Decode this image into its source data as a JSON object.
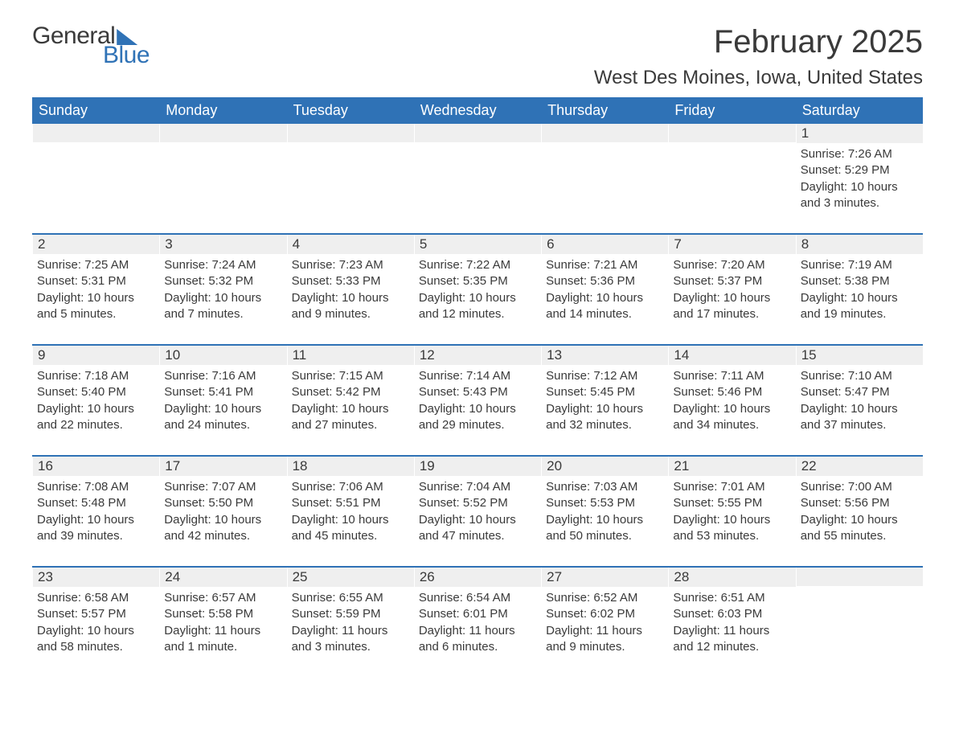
{
  "logo": {
    "text1": "General",
    "text2": "Blue"
  },
  "title": "February 2025",
  "location": "West Des Moines, Iowa, United States",
  "colors": {
    "header_bg": "#2f72b6",
    "header_text": "#ffffff",
    "daynum_bg": "#efefef",
    "border": "#2f72b6",
    "text": "#3a3a3a",
    "page_bg": "#ffffff"
  },
  "fonts": {
    "title_size": 40,
    "location_size": 24,
    "weekday_size": 18,
    "body_size": 15
  },
  "weekdays": [
    "Sunday",
    "Monday",
    "Tuesday",
    "Wednesday",
    "Thursday",
    "Friday",
    "Saturday"
  ],
  "weeks": [
    [
      {
        "n": "",
        "sunrise": "",
        "sunset": "",
        "daylight": ""
      },
      {
        "n": "",
        "sunrise": "",
        "sunset": "",
        "daylight": ""
      },
      {
        "n": "",
        "sunrise": "",
        "sunset": "",
        "daylight": ""
      },
      {
        "n": "",
        "sunrise": "",
        "sunset": "",
        "daylight": ""
      },
      {
        "n": "",
        "sunrise": "",
        "sunset": "",
        "daylight": ""
      },
      {
        "n": "",
        "sunrise": "",
        "sunset": "",
        "daylight": ""
      },
      {
        "n": "1",
        "sunrise": "Sunrise: 7:26 AM",
        "sunset": "Sunset: 5:29 PM",
        "daylight": "Daylight: 10 hours and 3 minutes."
      }
    ],
    [
      {
        "n": "2",
        "sunrise": "Sunrise: 7:25 AM",
        "sunset": "Sunset: 5:31 PM",
        "daylight": "Daylight: 10 hours and 5 minutes."
      },
      {
        "n": "3",
        "sunrise": "Sunrise: 7:24 AM",
        "sunset": "Sunset: 5:32 PM",
        "daylight": "Daylight: 10 hours and 7 minutes."
      },
      {
        "n": "4",
        "sunrise": "Sunrise: 7:23 AM",
        "sunset": "Sunset: 5:33 PM",
        "daylight": "Daylight: 10 hours and 9 minutes."
      },
      {
        "n": "5",
        "sunrise": "Sunrise: 7:22 AM",
        "sunset": "Sunset: 5:35 PM",
        "daylight": "Daylight: 10 hours and 12 minutes."
      },
      {
        "n": "6",
        "sunrise": "Sunrise: 7:21 AM",
        "sunset": "Sunset: 5:36 PM",
        "daylight": "Daylight: 10 hours and 14 minutes."
      },
      {
        "n": "7",
        "sunrise": "Sunrise: 7:20 AM",
        "sunset": "Sunset: 5:37 PM",
        "daylight": "Daylight: 10 hours and 17 minutes."
      },
      {
        "n": "8",
        "sunrise": "Sunrise: 7:19 AM",
        "sunset": "Sunset: 5:38 PM",
        "daylight": "Daylight: 10 hours and 19 minutes."
      }
    ],
    [
      {
        "n": "9",
        "sunrise": "Sunrise: 7:18 AM",
        "sunset": "Sunset: 5:40 PM",
        "daylight": "Daylight: 10 hours and 22 minutes."
      },
      {
        "n": "10",
        "sunrise": "Sunrise: 7:16 AM",
        "sunset": "Sunset: 5:41 PM",
        "daylight": "Daylight: 10 hours and 24 minutes."
      },
      {
        "n": "11",
        "sunrise": "Sunrise: 7:15 AM",
        "sunset": "Sunset: 5:42 PM",
        "daylight": "Daylight: 10 hours and 27 minutes."
      },
      {
        "n": "12",
        "sunrise": "Sunrise: 7:14 AM",
        "sunset": "Sunset: 5:43 PM",
        "daylight": "Daylight: 10 hours and 29 minutes."
      },
      {
        "n": "13",
        "sunrise": "Sunrise: 7:12 AM",
        "sunset": "Sunset: 5:45 PM",
        "daylight": "Daylight: 10 hours and 32 minutes."
      },
      {
        "n": "14",
        "sunrise": "Sunrise: 7:11 AM",
        "sunset": "Sunset: 5:46 PM",
        "daylight": "Daylight: 10 hours and 34 minutes."
      },
      {
        "n": "15",
        "sunrise": "Sunrise: 7:10 AM",
        "sunset": "Sunset: 5:47 PM",
        "daylight": "Daylight: 10 hours and 37 minutes."
      }
    ],
    [
      {
        "n": "16",
        "sunrise": "Sunrise: 7:08 AM",
        "sunset": "Sunset: 5:48 PM",
        "daylight": "Daylight: 10 hours and 39 minutes."
      },
      {
        "n": "17",
        "sunrise": "Sunrise: 7:07 AM",
        "sunset": "Sunset: 5:50 PM",
        "daylight": "Daylight: 10 hours and 42 minutes."
      },
      {
        "n": "18",
        "sunrise": "Sunrise: 7:06 AM",
        "sunset": "Sunset: 5:51 PM",
        "daylight": "Daylight: 10 hours and 45 minutes."
      },
      {
        "n": "19",
        "sunrise": "Sunrise: 7:04 AM",
        "sunset": "Sunset: 5:52 PM",
        "daylight": "Daylight: 10 hours and 47 minutes."
      },
      {
        "n": "20",
        "sunrise": "Sunrise: 7:03 AM",
        "sunset": "Sunset: 5:53 PM",
        "daylight": "Daylight: 10 hours and 50 minutes."
      },
      {
        "n": "21",
        "sunrise": "Sunrise: 7:01 AM",
        "sunset": "Sunset: 5:55 PM",
        "daylight": "Daylight: 10 hours and 53 minutes."
      },
      {
        "n": "22",
        "sunrise": "Sunrise: 7:00 AM",
        "sunset": "Sunset: 5:56 PM",
        "daylight": "Daylight: 10 hours and 55 minutes."
      }
    ],
    [
      {
        "n": "23",
        "sunrise": "Sunrise: 6:58 AM",
        "sunset": "Sunset: 5:57 PM",
        "daylight": "Daylight: 10 hours and 58 minutes."
      },
      {
        "n": "24",
        "sunrise": "Sunrise: 6:57 AM",
        "sunset": "Sunset: 5:58 PM",
        "daylight": "Daylight: 11 hours and 1 minute."
      },
      {
        "n": "25",
        "sunrise": "Sunrise: 6:55 AM",
        "sunset": "Sunset: 5:59 PM",
        "daylight": "Daylight: 11 hours and 3 minutes."
      },
      {
        "n": "26",
        "sunrise": "Sunrise: 6:54 AM",
        "sunset": "Sunset: 6:01 PM",
        "daylight": "Daylight: 11 hours and 6 minutes."
      },
      {
        "n": "27",
        "sunrise": "Sunrise: 6:52 AM",
        "sunset": "Sunset: 6:02 PM",
        "daylight": "Daylight: 11 hours and 9 minutes."
      },
      {
        "n": "28",
        "sunrise": "Sunrise: 6:51 AM",
        "sunset": "Sunset: 6:03 PM",
        "daylight": "Daylight: 11 hours and 12 minutes."
      },
      {
        "n": "",
        "sunrise": "",
        "sunset": "",
        "daylight": ""
      }
    ]
  ]
}
